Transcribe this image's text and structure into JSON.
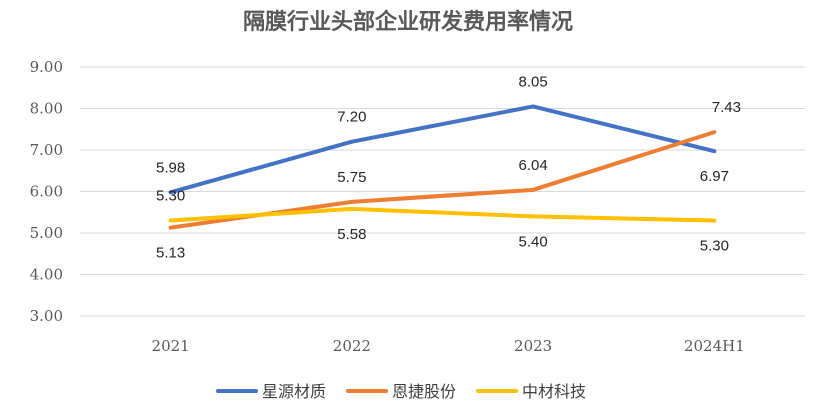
{
  "chart_data": {
    "type": "line",
    "title": "隔膜行业头部企业研发费用率情况",
    "xlabel": "",
    "ylabel": "",
    "categories": [
      "2021",
      "2022",
      "2023",
      "2024H1"
    ],
    "y_ticks": [
      "3.00",
      "4.00",
      "5.00",
      "6.00",
      "7.00",
      "8.00",
      "9.00"
    ],
    "ylim": [
      3,
      9
    ],
    "grid": true,
    "legend_position": "bottom",
    "series": [
      {
        "name": "星源材质",
        "color": "#4472C4",
        "values": [
          5.98,
          7.2,
          8.05,
          6.97
        ],
        "labels": [
          "5.98",
          "7.20",
          "8.05",
          "6.97"
        ]
      },
      {
        "name": "恩捷股份",
        "color": "#ED7D31",
        "values": [
          5.13,
          5.75,
          6.04,
          7.43
        ],
        "labels": [
          "5.13",
          "5.75",
          "6.04",
          "7.43"
        ]
      },
      {
        "name": "中材科技",
        "color": "#FFC000",
        "values": [
          5.3,
          5.58,
          5.4,
          5.3
        ],
        "labels": [
          "5.30",
          "5.58",
          "5.40",
          "5.30"
        ]
      }
    ]
  }
}
